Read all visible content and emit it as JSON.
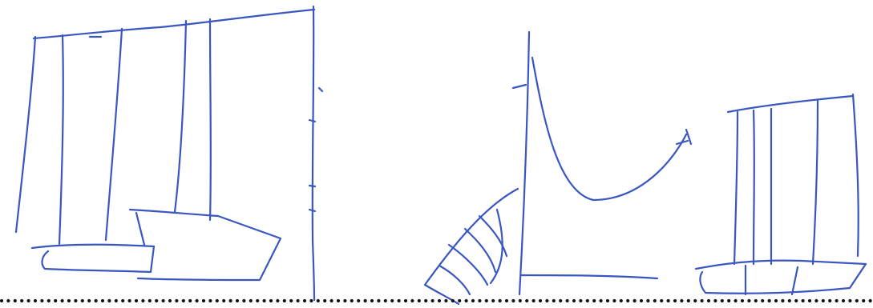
{
  "drawing": {
    "ink_color": "#3a56c0",
    "dot_color": "#141414",
    "paper_color": "#ffffff",
    "objects": [
      "tall-building-sketch",
      "curved-tower-sketch",
      "small-building-sketch",
      "ground-line"
    ]
  }
}
